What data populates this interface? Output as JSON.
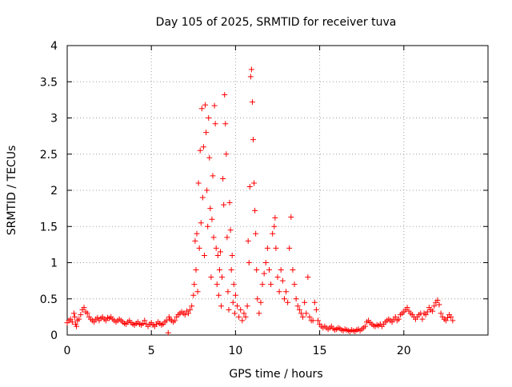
{
  "chart_data": {
    "type": "scatter",
    "title": "Day 105 of 2025, SRMTID for receiver tuva",
    "xlabel": "GPS time / hours",
    "ylabel": "SRMTID / TECUs",
    "xlim": [
      0,
      25
    ],
    "ylim": [
      0,
      4
    ],
    "x_ticks": [
      0,
      5,
      10,
      15,
      20
    ],
    "y_ticks": [
      0,
      0.5,
      1,
      1.5,
      2,
      2.5,
      3,
      3.5,
      4
    ],
    "x_tick_labels": [
      "0",
      "5",
      "10",
      "15",
      "20"
    ],
    "y_tick_labels": [
      "0",
      "0.5",
      "1",
      "1.5",
      "2",
      "2.5",
      "3",
      "3.5",
      "4"
    ],
    "grid": true,
    "marker": "+",
    "color": "#ff0000",
    "series": [
      {
        "name": "SRMTID",
        "points": [
          [
            0.0,
            0.17
          ],
          [
            0.1,
            0.2
          ],
          [
            0.2,
            0.22
          ],
          [
            0.3,
            0.18
          ],
          [
            0.4,
            0.3
          ],
          [
            0.45,
            0.25
          ],
          [
            0.5,
            0.15
          ],
          [
            0.55,
            0.12
          ],
          [
            0.6,
            0.2
          ],
          [
            0.7,
            0.22
          ],
          [
            0.8,
            0.28
          ],
          [
            0.9,
            0.35
          ],
          [
            1.0,
            0.38
          ],
          [
            1.1,
            0.32
          ],
          [
            1.2,
            0.3
          ],
          [
            1.3,
            0.25
          ],
          [
            1.4,
            0.22
          ],
          [
            1.5,
            0.2
          ],
          [
            1.6,
            0.18
          ],
          [
            1.7,
            0.22
          ],
          [
            1.8,
            0.24
          ],
          [
            1.9,
            0.2
          ],
          [
            2.0,
            0.23
          ],
          [
            2.1,
            0.25
          ],
          [
            2.2,
            0.22
          ],
          [
            2.3,
            0.2
          ],
          [
            2.4,
            0.24
          ],
          [
            2.5,
            0.23
          ],
          [
            2.6,
            0.25
          ],
          [
            2.7,
            0.22
          ],
          [
            2.8,
            0.2
          ],
          [
            2.9,
            0.18
          ],
          [
            3.0,
            0.2
          ],
          [
            3.1,
            0.22
          ],
          [
            3.2,
            0.2
          ],
          [
            3.3,
            0.18
          ],
          [
            3.4,
            0.16
          ],
          [
            3.5,
            0.15
          ],
          [
            3.6,
            0.18
          ],
          [
            3.7,
            0.2
          ],
          [
            3.8,
            0.17
          ],
          [
            3.9,
            0.15
          ],
          [
            4.0,
            0.14
          ],
          [
            4.1,
            0.16
          ],
          [
            4.2,
            0.18
          ],
          [
            4.3,
            0.15
          ],
          [
            4.4,
            0.14
          ],
          [
            4.5,
            0.16
          ],
          [
            4.6,
            0.2
          ],
          [
            4.7,
            0.15
          ],
          [
            4.8,
            0.12
          ],
          [
            4.9,
            0.15
          ],
          [
            5.0,
            0.17
          ],
          [
            5.1,
            0.14
          ],
          [
            5.2,
            0.12
          ],
          [
            5.3,
            0.15
          ],
          [
            5.4,
            0.18
          ],
          [
            5.5,
            0.16
          ],
          [
            5.6,
            0.14
          ],
          [
            5.7,
            0.15
          ],
          [
            5.8,
            0.18
          ],
          [
            5.9,
            0.2
          ],
          [
            6.0,
            0.03
          ],
          [
            6.05,
            0.25
          ],
          [
            6.1,
            0.22
          ],
          [
            6.2,
            0.2
          ],
          [
            6.3,
            0.18
          ],
          [
            6.4,
            0.2
          ],
          [
            6.5,
            0.25
          ],
          [
            6.6,
            0.28
          ],
          [
            6.7,
            0.3
          ],
          [
            6.8,
            0.32
          ],
          [
            6.9,
            0.3
          ],
          [
            7.0,
            0.28
          ],
          [
            7.1,
            0.33
          ],
          [
            7.2,
            0.3
          ],
          [
            7.3,
            0.35
          ],
          [
            7.4,
            0.4
          ],
          [
            7.5,
            0.55
          ],
          [
            7.55,
            0.7
          ],
          [
            7.6,
            1.3
          ],
          [
            7.65,
            0.9
          ],
          [
            7.7,
            1.4
          ],
          [
            7.75,
            0.6
          ],
          [
            7.8,
            2.1
          ],
          [
            7.85,
            1.2
          ],
          [
            7.9,
            2.55
          ],
          [
            7.95,
            1.55
          ],
          [
            8.0,
            3.13
          ],
          [
            8.05,
            1.9
          ],
          [
            8.1,
            2.6
          ],
          [
            8.15,
            1.1
          ],
          [
            8.2,
            3.18
          ],
          [
            8.25,
            2.8
          ],
          [
            8.3,
            2.0
          ],
          [
            8.35,
            1.5
          ],
          [
            8.4,
            3.0
          ],
          [
            8.45,
            2.45
          ],
          [
            8.5,
            1.75
          ],
          [
            8.55,
            0.8
          ],
          [
            8.6,
            1.6
          ],
          [
            8.65,
            2.2
          ],
          [
            8.7,
            1.35
          ],
          [
            8.75,
            3.17
          ],
          [
            8.8,
            2.92
          ],
          [
            8.85,
            1.2
          ],
          [
            8.9,
            0.7
          ],
          [
            8.95,
            1.1
          ],
          [
            9.0,
            0.55
          ],
          [
            9.05,
            0.9
          ],
          [
            9.1,
            1.15
          ],
          [
            9.15,
            0.4
          ],
          [
            9.2,
            0.8
          ],
          [
            9.25,
            2.16
          ],
          [
            9.3,
            1.8
          ],
          [
            9.35,
            3.32
          ],
          [
            9.4,
            2.92
          ],
          [
            9.45,
            2.5
          ],
          [
            9.5,
            1.35
          ],
          [
            9.55,
            0.6
          ],
          [
            9.6,
            0.35
          ],
          [
            9.65,
            1.83
          ],
          [
            9.7,
            1.45
          ],
          [
            9.75,
            0.9
          ],
          [
            9.8,
            1.1
          ],
          [
            9.85,
            0.45
          ],
          [
            9.9,
            0.7
          ],
          [
            9.95,
            0.3
          ],
          [
            10.0,
            0.55
          ],
          [
            10.1,
            0.4
          ],
          [
            10.2,
            0.25
          ],
          [
            10.3,
            0.35
          ],
          [
            10.4,
            0.2
          ],
          [
            10.5,
            0.3
          ],
          [
            10.6,
            0.25
          ],
          [
            10.7,
            0.4
          ],
          [
            10.75,
            1.3
          ],
          [
            10.8,
            1.0
          ],
          [
            10.85,
            2.05
          ],
          [
            10.9,
            3.57
          ],
          [
            10.95,
            3.67
          ],
          [
            11.0,
            3.22
          ],
          [
            11.05,
            2.7
          ],
          [
            11.1,
            2.1
          ],
          [
            11.15,
            1.72
          ],
          [
            11.2,
            1.4
          ],
          [
            11.25,
            0.9
          ],
          [
            11.3,
            0.5
          ],
          [
            11.4,
            0.3
          ],
          [
            11.5,
            0.45
          ],
          [
            11.6,
            0.7
          ],
          [
            11.7,
            0.85
          ],
          [
            11.8,
            1.0
          ],
          [
            11.9,
            1.2
          ],
          [
            12.0,
            0.9
          ],
          [
            12.1,
            0.7
          ],
          [
            12.2,
            1.4
          ],
          [
            12.3,
            1.5
          ],
          [
            12.35,
            1.62
          ],
          [
            12.4,
            1.2
          ],
          [
            12.5,
            0.8
          ],
          [
            12.6,
            0.6
          ],
          [
            12.7,
            0.9
          ],
          [
            12.8,
            0.75
          ],
          [
            12.9,
            0.5
          ],
          [
            13.0,
            0.6
          ],
          [
            13.1,
            0.45
          ],
          [
            13.2,
            1.2
          ],
          [
            13.3,
            1.63
          ],
          [
            13.4,
            0.9
          ],
          [
            13.5,
            0.7
          ],
          [
            13.6,
            0.5
          ],
          [
            13.7,
            0.4
          ],
          [
            13.8,
            0.35
          ],
          [
            13.9,
            0.3
          ],
          [
            14.0,
            0.25
          ],
          [
            14.1,
            0.45
          ],
          [
            14.2,
            0.3
          ],
          [
            14.3,
            0.8
          ],
          [
            14.4,
            0.25
          ],
          [
            14.5,
            0.2
          ],
          [
            14.6,
            0.2
          ],
          [
            14.7,
            0.45
          ],
          [
            14.8,
            0.35
          ],
          [
            14.9,
            0.2
          ],
          [
            15.0,
            0.15
          ],
          [
            15.1,
            0.12
          ],
          [
            15.2,
            0.1
          ],
          [
            15.3,
            0.12
          ],
          [
            15.4,
            0.1
          ],
          [
            15.5,
            0.08
          ],
          [
            15.6,
            0.1
          ],
          [
            15.7,
            0.12
          ],
          [
            15.8,
            0.09
          ],
          [
            15.9,
            0.07
          ],
          [
            16.0,
            0.08
          ],
          [
            16.1,
            0.1
          ],
          [
            16.2,
            0.09
          ],
          [
            16.3,
            0.07
          ],
          [
            16.4,
            0.06
          ],
          [
            16.5,
            0.08
          ],
          [
            16.6,
            0.07
          ],
          [
            16.7,
            0.06
          ],
          [
            16.8,
            0.05
          ],
          [
            16.9,
            0.07
          ],
          [
            17.0,
            0.06
          ],
          [
            17.1,
            0.05
          ],
          [
            17.2,
            0.07
          ],
          [
            17.3,
            0.08
          ],
          [
            17.4,
            0.06
          ],
          [
            17.5,
            0.08
          ],
          [
            17.6,
            0.1
          ],
          [
            17.7,
            0.12
          ],
          [
            17.8,
            0.18
          ],
          [
            17.9,
            0.2
          ],
          [
            18.0,
            0.17
          ],
          [
            18.1,
            0.15
          ],
          [
            18.2,
            0.13
          ],
          [
            18.3,
            0.12
          ],
          [
            18.4,
            0.14
          ],
          [
            18.5,
            0.13
          ],
          [
            18.6,
            0.15
          ],
          [
            18.7,
            0.12
          ],
          [
            18.8,
            0.15
          ],
          [
            18.9,
            0.18
          ],
          [
            19.0,
            0.2
          ],
          [
            19.1,
            0.22
          ],
          [
            19.2,
            0.2
          ],
          [
            19.3,
            0.18
          ],
          [
            19.4,
            0.22
          ],
          [
            19.5,
            0.25
          ],
          [
            19.6,
            0.2
          ],
          [
            19.7,
            0.22
          ],
          [
            19.8,
            0.28
          ],
          [
            19.9,
            0.3
          ],
          [
            20.0,
            0.32
          ],
          [
            20.1,
            0.35
          ],
          [
            20.2,
            0.38
          ],
          [
            20.3,
            0.33
          ],
          [
            20.4,
            0.3
          ],
          [
            20.5,
            0.28
          ],
          [
            20.6,
            0.25
          ],
          [
            20.7,
            0.22
          ],
          [
            20.8,
            0.25
          ],
          [
            20.9,
            0.28
          ],
          [
            21.0,
            0.3
          ],
          [
            21.1,
            0.22
          ],
          [
            21.2,
            0.3
          ],
          [
            21.3,
            0.28
          ],
          [
            21.4,
            0.32
          ],
          [
            21.5,
            0.38
          ],
          [
            21.6,
            0.35
          ],
          [
            21.7,
            0.33
          ],
          [
            21.8,
            0.4
          ],
          [
            21.9,
            0.45
          ],
          [
            22.0,
            0.48
          ],
          [
            22.1,
            0.42
          ],
          [
            22.2,
            0.3
          ],
          [
            22.3,
            0.25
          ],
          [
            22.4,
            0.22
          ],
          [
            22.5,
            0.2
          ],
          [
            22.6,
            0.24
          ],
          [
            22.7,
            0.28
          ],
          [
            22.8,
            0.25
          ],
          [
            22.9,
            0.2
          ]
        ]
      }
    ]
  }
}
